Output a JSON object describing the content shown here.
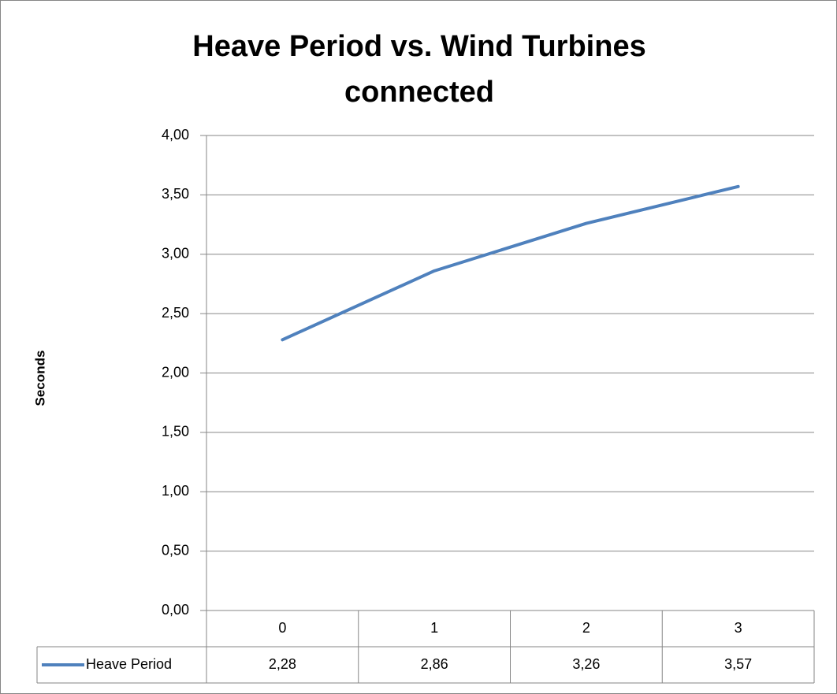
{
  "chart_data": {
    "type": "line",
    "title": "Heave Period vs. Wind Turbines connected",
    "y_label": "Seconds",
    "categories": [
      "0",
      "1",
      "2",
      "3"
    ],
    "series": [
      {
        "name": "Heave Period",
        "color": "#4f81bd",
        "values": [
          2.28,
          2.86,
          3.26,
          3.57
        ],
        "value_labels": [
          "2,28",
          "2,86",
          "3,26",
          "3,57"
        ]
      }
    ],
    "ylim": [
      0,
      4
    ],
    "yticks": [
      {
        "value": 0,
        "label": "0,00"
      },
      {
        "value": 0.5,
        "label": "0,50"
      },
      {
        "value": 1,
        "label": "1,00"
      },
      {
        "value": 1.5,
        "label": "1,50"
      },
      {
        "value": 2,
        "label": "2,00"
      },
      {
        "value": 2.5,
        "label": "2,50"
      },
      {
        "value": 3,
        "label": "3,00"
      },
      {
        "value": 3.5,
        "label": "3,50"
      },
      {
        "value": 4,
        "label": "4,00"
      }
    ],
    "grid": true,
    "data_table": true
  }
}
